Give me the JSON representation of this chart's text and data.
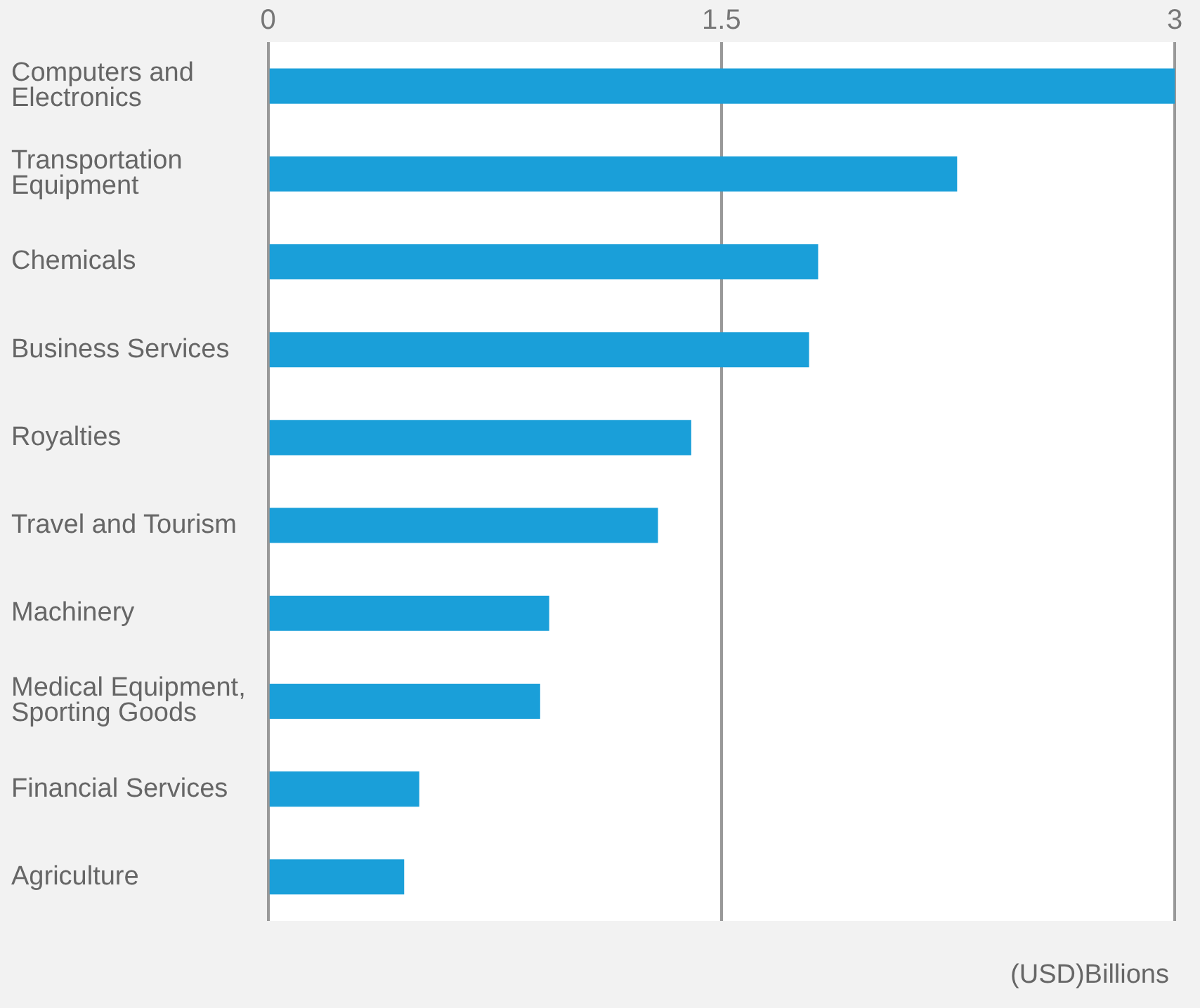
{
  "chart_data": {
    "type": "bar",
    "orientation": "horizontal",
    "categories": [
      "Computers and Electronics",
      "Transportation Equipment",
      "Chemicals",
      "Business Services",
      "Royalties",
      "Travel and Tourism",
      "Machinery",
      "Medical Equipment, Sporting Goods",
      "Financial Services",
      "Agriculture"
    ],
    "values": [
      3.0,
      2.28,
      1.82,
      1.79,
      1.4,
      1.29,
      0.93,
      0.9,
      0.5,
      0.45
    ],
    "color": "#1a9fd9",
    "xlim": [
      0,
      3
    ],
    "xticks": [
      0,
      1.5,
      3
    ],
    "grid": "x",
    "xlabel": "(USD)Billions"
  }
}
